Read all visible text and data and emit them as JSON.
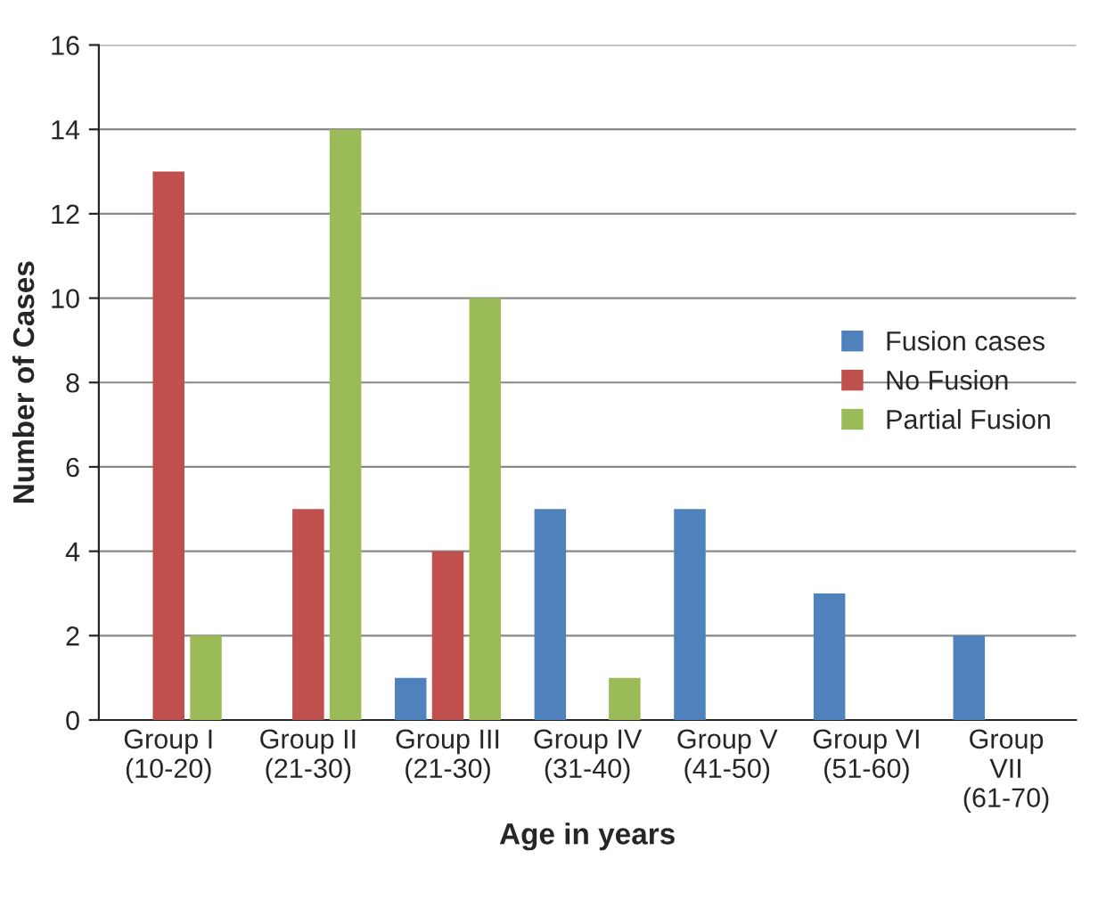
{
  "chart_data": {
    "type": "bar",
    "xlabel": "Age in years",
    "ylabel": "Number of Cases",
    "categories": [
      "Group I\n(10-20)",
      "Group II\n(21-30)",
      "Group III\n(21-30)",
      "Group IV\n(31-40)",
      "Group V\n(41-50)",
      "Group VI\n(51-60)",
      "Group\nVII\n(61-70)"
    ],
    "series": [
      {
        "name": "Fusion cases",
        "color": "#4f81bd",
        "values": [
          0,
          0,
          1,
          5,
          5,
          3,
          2
        ]
      },
      {
        "name": "No Fusion",
        "color": "#c0504d",
        "values": [
          13,
          5,
          4,
          0,
          0,
          0,
          0
        ]
      },
      {
        "name": "Partial Fusion",
        "color": "#9bbb59",
        "values": [
          2,
          14,
          10,
          1,
          0,
          0,
          0
        ]
      }
    ],
    "ylim": [
      0,
      16
    ],
    "yticks": [
      0,
      2,
      4,
      6,
      8,
      10,
      12,
      14,
      16
    ],
    "grid": "y",
    "legend": "right"
  }
}
